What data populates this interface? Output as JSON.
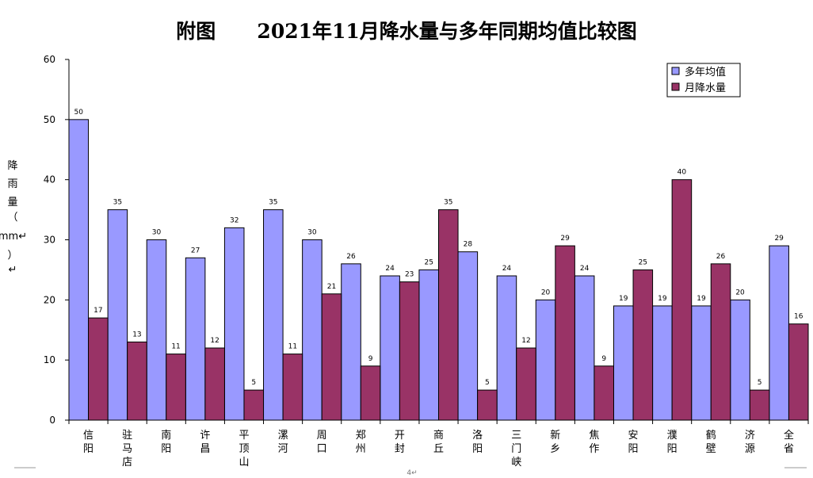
{
  "chart_data": {
    "type": "bar",
    "title": "附图      2021年11月降水量与多年同期均值比较图",
    "ylabel": "降雨量（mm↵）↵",
    "ylabel_chars": [
      "降",
      "雨",
      "量",
      "（",
      "mm↵",
      "）",
      "↵"
    ],
    "xlabel": "",
    "ylim": [
      0,
      60
    ],
    "yticks": [
      0,
      10,
      20,
      30,
      40,
      50,
      60
    ],
    "grid": false,
    "legend_position": "top-right",
    "categories": [
      "信阳",
      "驻马店",
      "南阳",
      "许昌",
      "平顶山",
      "漯河",
      "周口",
      "郑州",
      "开封",
      "商丘",
      "洛阳",
      "三门峡",
      "新乡",
      "焦作",
      "安阳",
      "濮阳",
      "鹤壁",
      "济源",
      "全省"
    ],
    "series": [
      {
        "name": "多年均值",
        "color": "#9999ff",
        "values": [
          50,
          35,
          30,
          27,
          32,
          35,
          30,
          26,
          24,
          25,
          28,
          24,
          20,
          24,
          19,
          19,
          19,
          20,
          29
        ]
      },
      {
        "name": "月降水量",
        "color": "#993366",
        "values": [
          17,
          13,
          11,
          12,
          5,
          11,
          21,
          9,
          23,
          35,
          5,
          12,
          29,
          9,
          25,
          40,
          26,
          5,
          16
        ]
      }
    ],
    "footer_mark": "4↵"
  }
}
